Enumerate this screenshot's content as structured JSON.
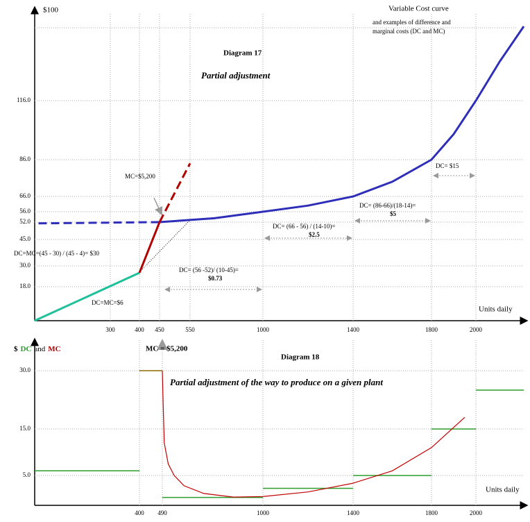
{
  "chart_data": [
    {
      "type": "line",
      "title": "Diagram 17",
      "subtitle": "Partial adjustment",
      "ylabel": "$100",
      "xlabel": "Units daily",
      "annotations": [
        "Variable Cost curve",
        "and examples of difference  and",
        "marginal costs (DC and MC)",
        "MC=$5,200",
        "DC=MC=(45 - 30) / (45 - 4)= $30",
        "DC=MC=$6",
        "DC= (56 -52)/ (10-45)=",
        "$0.73",
        "DC= (66 - 56) / (14-10)=",
        "$2.5",
        "DC= (86-66)/(18-14)=",
        "$5",
        "DC= $15"
      ],
      "xlim": [
        0,
        2200
      ],
      "ylim": [
        0,
        150
      ],
      "xticks": [
        300,
        400,
        450,
        550,
        1000,
        1400,
        1800,
        2000
      ],
      "yticks": [
        {
          "value": 18,
          "label": "18.0"
        },
        {
          "value": 30,
          "label": "30.0"
        },
        {
          "value": 45,
          "label": "45.0"
        },
        {
          "value": 52,
          "label": "52.0"
        },
        {
          "value": 56,
          "label": "56.0"
        },
        {
          "value": 66,
          "label": "66.0"
        },
        {
          "value": 86,
          "label": "86.0"
        },
        {
          "value": 116,
          "label": "116.0"
        }
      ],
      "grid": true,
      "series": [
        {
          "color": "#2e2eb8",
          "dash": true,
          "x": [
            15,
            300,
            450
          ],
          "values": [
            51.5,
            51.8,
            52
          ]
        },
        {
          "color": "#2e2eb8",
          "x": [
            450,
            700,
            1000,
            1200,
            1400,
            1600,
            1800,
            1900,
            2000,
            2100,
            2200
          ],
          "values": [
            52,
            53.5,
            56,
            60,
            66,
            74,
            86,
            99,
            116,
            134,
            150
          ]
        },
        {
          "color": "#1fc09a",
          "x": [
            0,
            400
          ],
          "values": [
            0,
            26
          ]
        },
        {
          "color": "#b00000",
          "x": [
            400,
            450
          ],
          "values": [
            26,
            52
          ]
        },
        {
          "color": "#b00000",
          "dash": true,
          "x": [
            450,
            550
          ],
          "values": [
            52,
            84
          ]
        }
      ]
    },
    {
      "type": "line",
      "title": "Diagram 18",
      "subtitle": "Partial adjustment of the way to produce on a given plant",
      "ylabel": [
        "$",
        "DC",
        "and",
        "MC"
      ],
      "xlabel": "Units daily",
      "annotations": [
        "MC = $5,200"
      ],
      "xlim": [
        0,
        2200
      ],
      "ylim": [
        0,
        40
      ],
      "xticks": [
        400,
        490,
        1000,
        1400,
        1800,
        2000
      ],
      "yticks": [
        {
          "value": 5,
          "label": "5.0"
        },
        {
          "value": 15,
          "label": "15.0"
        },
        {
          "value": 30,
          "label": "30.0"
        }
      ],
      "grid": true,
      "steps": {
        "bins": [
          0,
          400,
          490,
          1000,
          1400,
          1800,
          2000,
          2200
        ],
        "values": [
          6,
          30,
          0.73,
          2.5,
          5,
          15,
          25
        ],
        "colors": [
          "#2a9d2a",
          "#8b6a00",
          "#2a9d2a",
          "#2a9d2a",
          "#2a9d2a",
          "#2a9d2a",
          "#2a9d2a"
        ]
      },
      "series": [
        {
          "color": "#c00000",
          "x": [
            490,
            495,
            500,
            520,
            550,
            600,
            700,
            850,
            1000,
            1200,
            1400,
            1600,
            1800,
            1950
          ],
          "values": [
            30,
            20,
            12,
            7.5,
            5,
            3,
            1.5,
            0.8,
            0.9,
            1.8,
            3.5,
            6,
            11,
            18
          ]
        }
      ]
    }
  ]
}
